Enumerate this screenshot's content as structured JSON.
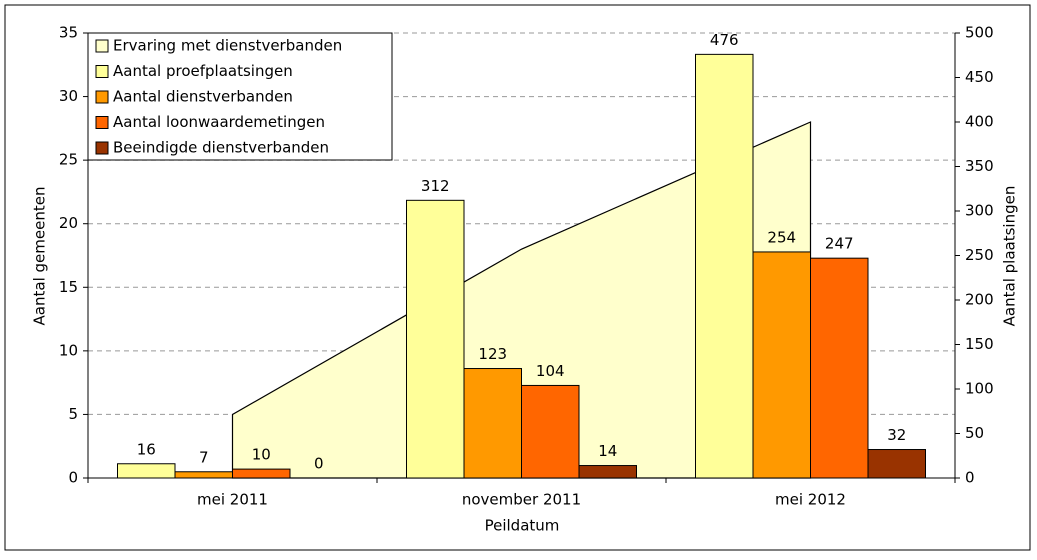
{
  "chart_data": {
    "type": "bar",
    "x_label": "Peildatum",
    "y_label": "Aantal gemeenten",
    "y2_label": "Aantal plaatsingen",
    "categories": [
      "mei 2011",
      "november 2011",
      "mei 2012"
    ],
    "series": [
      {
        "name": "Ervaring met dienstverbanden",
        "type": "area",
        "color": "#ffffcc",
        "axis": "y",
        "values": [
          5,
          18,
          28
        ]
      },
      {
        "name": "Aantal proefplaatsingen",
        "color": "#ffff99",
        "axis": "y2",
        "values": [
          16,
          312,
          476
        ]
      },
      {
        "name": "Aantal dienstverbanden",
        "color": "#ff9900",
        "axis": "y2",
        "values": [
          7,
          123,
          254
        ]
      },
      {
        "name": "Aantal loonwaardemetingen",
        "color": "#ff6600",
        "axis": "y2",
        "values": [
          10,
          104,
          247
        ]
      },
      {
        "name": "Beeindigde dienstverbanden",
        "color": "#993300",
        "axis": "y2",
        "values": [
          0,
          14,
          32
        ]
      }
    ],
    "ylim": [
      0,
      35
    ],
    "yticks": [
      0,
      5,
      10,
      15,
      20,
      25,
      30,
      35
    ],
    "y2lim": [
      0,
      500
    ],
    "y2ticks": [
      0,
      50,
      100,
      150,
      200,
      250,
      300,
      350,
      400,
      450,
      500
    ],
    "grid": true,
    "legend": "top-left"
  }
}
